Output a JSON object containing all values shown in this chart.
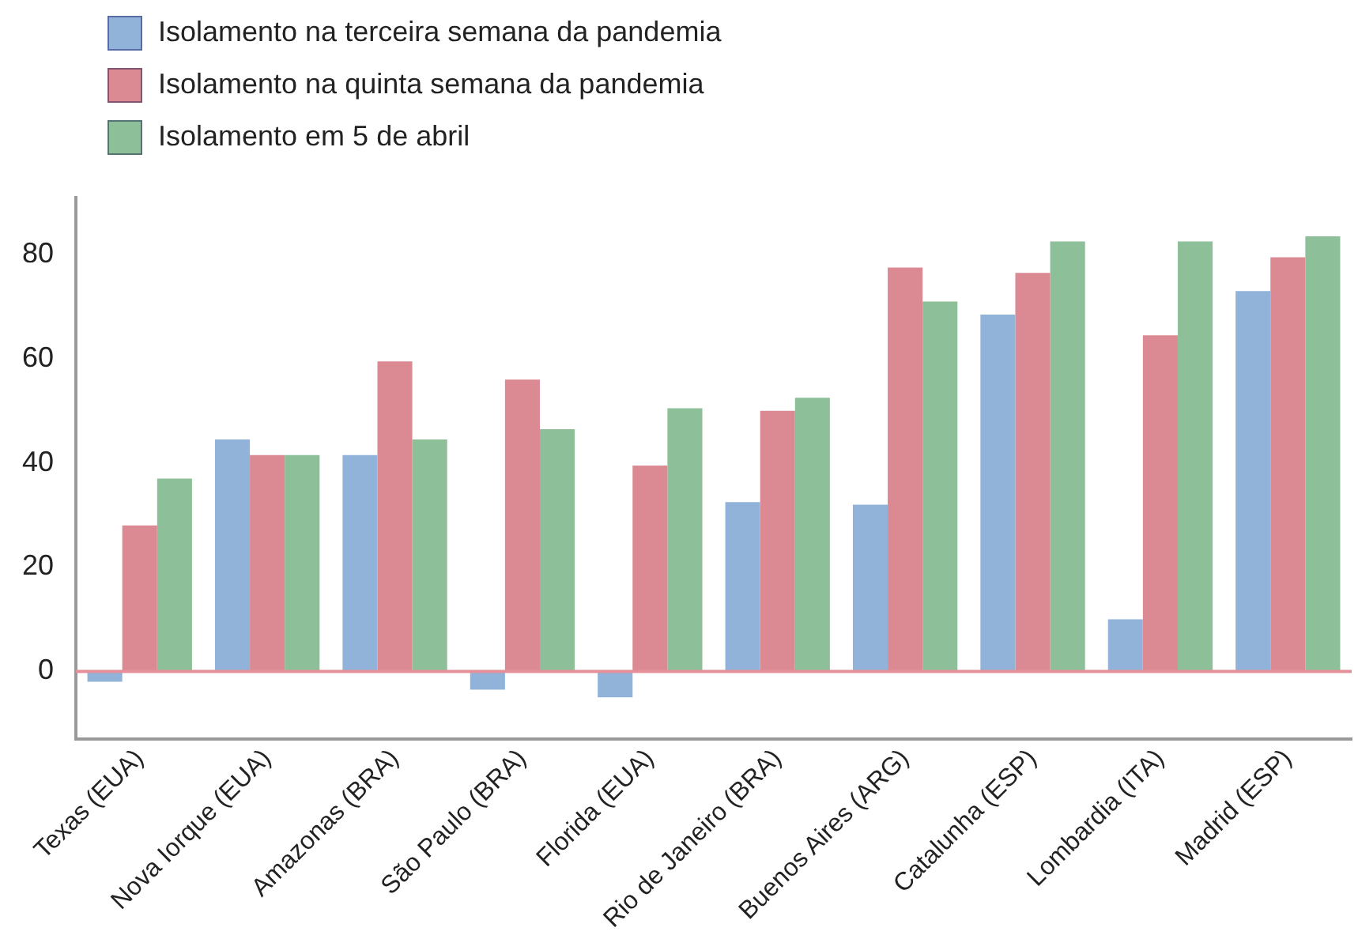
{
  "chart_data": {
    "type": "bar",
    "categories": [
      "Texas (EUA)",
      "Nova Iorque (EUA)",
      "Amazonas (BRA)",
      "São Paulo (BRA)",
      "Florida (EUA)",
      "Rio de Janeiro (BRA)",
      "Buenos Aires (ARG)",
      "Catalunha (ESP)",
      "Lombardia (ITA)",
      "Madrid (ESP)"
    ],
    "series": [
      {
        "name": "Isolamento na terceira semana da pandemia",
        "color": "#92b3d9",
        "values": [
          -2,
          44.5,
          41.5,
          -3.5,
          -5,
          32.5,
          32,
          68.5,
          10,
          73
        ]
      },
      {
        "name": "Isolamento na quinta semana da pandemia",
        "color": "#db8a94",
        "values": [
          28,
          41.5,
          59.5,
          56,
          39.5,
          50,
          77.5,
          76.5,
          64.5,
          79.5
        ]
      },
      {
        "name": "Isolamento em 5 de abril",
        "color": "#8dbf98",
        "values": [
          37,
          41.5,
          44.5,
          46.5,
          50.5,
          52.5,
          71,
          82.5,
          82.5,
          83.5
        ]
      }
    ],
    "ylim": [
      -13,
      91
    ],
    "yticks": [
      0,
      20,
      40,
      60,
      80
    ],
    "grid": false,
    "legend": "top left",
    "ref_lines": [
      {
        "axis": "y",
        "value": 0,
        "color": "#e58f9a"
      }
    ]
  }
}
